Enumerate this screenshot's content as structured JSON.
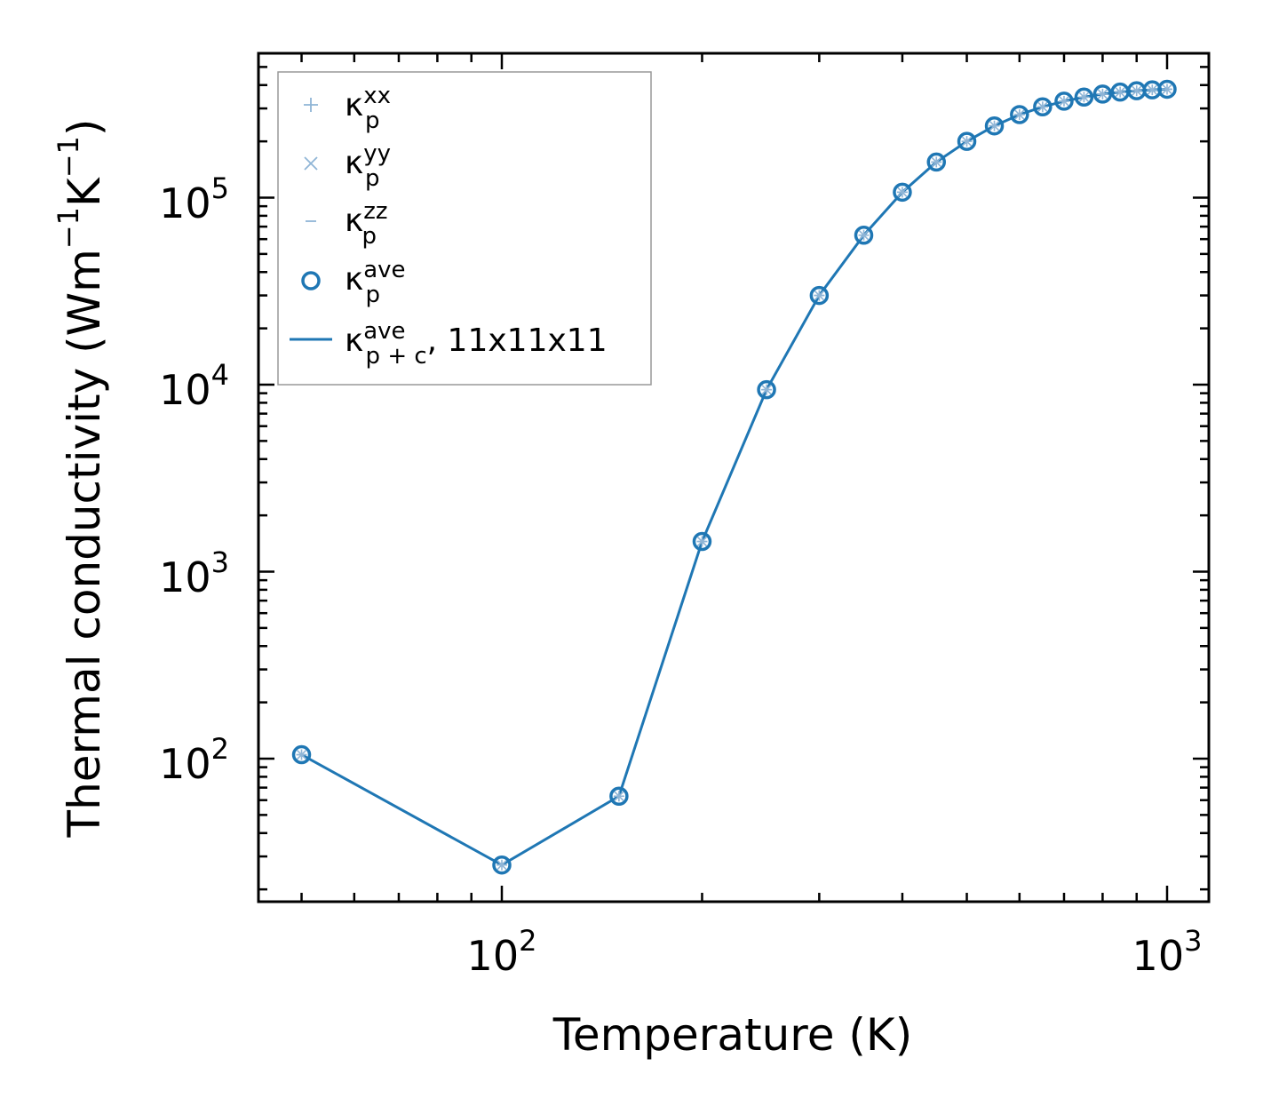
{
  "chart_data": {
    "type": "line",
    "title": "",
    "xlabel": "Temperature (K)",
    "ylabel": {
      "base": "Thermal conductivity (Wm",
      "exp1": "−1",
      "mid": "K",
      "exp2": "−1",
      "end": ")"
    },
    "xscale": "log",
    "yscale": "log",
    "xlim": [
      43,
      1070
    ],
    "ylim": [
      17,
      600000
    ],
    "x_ticks": [
      {
        "base": "10",
        "exp": "2",
        "value": 100
      },
      {
        "base": "10",
        "exp": "3",
        "value": 1000
      }
    ],
    "y_ticks": [
      {
        "base": "10",
        "exp": "2",
        "value": 100
      },
      {
        "base": "10",
        "exp": "3",
        "value": 1000
      },
      {
        "base": "10",
        "exp": "4",
        "value": 10000
      },
      {
        "base": "10",
        "exp": "5",
        "value": 100000
      }
    ],
    "x": [
      50,
      100,
      150,
      200,
      250,
      300,
      350,
      400,
      450,
      500,
      550,
      600,
      650,
      700,
      750,
      800,
      850,
      900,
      950,
      1000
    ],
    "series": [
      {
        "name": "κ_p^xx",
        "marker": "plus",
        "color": "#8fb5d6",
        "values": [
          105,
          27,
          63,
          1450,
          9400,
          30000,
          63000,
          107000,
          155000,
          200000,
          242000,
          278000,
          306000,
          328000,
          345000,
          358000,
          367000,
          373000,
          377000,
          380000
        ]
      },
      {
        "name": "κ_p^yy",
        "marker": "x",
        "color": "#8fb5d6",
        "values": [
          105,
          27,
          63,
          1450,
          9400,
          30000,
          63000,
          107000,
          155000,
          200000,
          242000,
          278000,
          306000,
          328000,
          345000,
          358000,
          367000,
          373000,
          377000,
          380000
        ]
      },
      {
        "name": "κ_p^zz",
        "marker": "hline",
        "color": "#8fb5d6",
        "values": [
          105,
          27,
          63,
          1450,
          9400,
          30000,
          63000,
          107000,
          155000,
          200000,
          242000,
          278000,
          306000,
          328000,
          345000,
          358000,
          367000,
          373000,
          377000,
          380000
        ]
      },
      {
        "name": "κ_p^ave",
        "marker": "circle",
        "color": "#1f77b4",
        "values": [
          105,
          27,
          63,
          1450,
          9400,
          30000,
          63000,
          107000,
          155000,
          200000,
          242000,
          278000,
          306000,
          328000,
          345000,
          358000,
          367000,
          373000,
          377000,
          380000
        ]
      },
      {
        "name": "κ_p+c^ave, 11x11x11",
        "marker": "line",
        "color": "#1f77b4",
        "values": [
          105,
          27,
          63,
          1450,
          9400,
          30000,
          63000,
          107000,
          155000,
          200000,
          242000,
          278000,
          306000,
          328000,
          345000,
          358000,
          367000,
          373000,
          377000,
          380000
        ]
      }
    ],
    "legend": {
      "placement": "top-left",
      "entries": [
        {
          "symbol": "κ",
          "sup": "xx",
          "sub": "p",
          "suffix": ""
        },
        {
          "symbol": "κ",
          "sup": "yy",
          "sub": "p",
          "suffix": ""
        },
        {
          "symbol": "κ",
          "sup": "zz",
          "sub": "p",
          "suffix": ""
        },
        {
          "symbol": "κ",
          "sup": "ave",
          "sub": "p",
          "suffix": ""
        },
        {
          "symbol": "κ",
          "sup": "ave",
          "sub": "p + c",
          "suffix": ", 11x11x11"
        }
      ]
    },
    "grid": false
  }
}
